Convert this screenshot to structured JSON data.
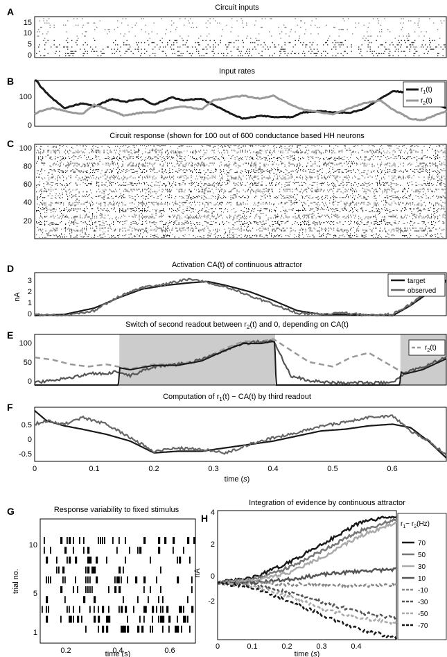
{
  "panels": {
    "A": {
      "letter": "A",
      "title": "Circuit inputs",
      "yticks": [
        "0",
        "5",
        "10",
        "15"
      ]
    },
    "B": {
      "letter": "B",
      "title": "Input rates",
      "yticks": [
        "0",
        "100"
      ],
      "legend": [
        "r",
        "1",
        "(t)",
        "r",
        "2",
        "(t)"
      ]
    },
    "C": {
      "letter": "C",
      "title": "Circuit response (shown for 100 out of 600 conductance based HH neurons",
      "yticks": [
        "20",
        "40",
        "60",
        "80",
        "100"
      ]
    },
    "D": {
      "letter": "D",
      "title": "Activation CA(t) of continuous attractor",
      "ylabel": "nA",
      "yticks": [
        "0",
        "1",
        "2",
        "3"
      ],
      "legend": [
        "target",
        "observed"
      ]
    },
    "E": {
      "letter": "E",
      "title_parts": [
        "Switch of second readout between r",
        "2",
        "(t) and 0, depending on CA(t)"
      ],
      "yticks": [
        "0",
        "50",
        "100"
      ],
      "legend": [
        "r",
        "2",
        "(t)"
      ]
    },
    "F": {
      "letter": "F",
      "title_parts": [
        "Computation of r",
        "1",
        "(t) − CA(t) by third readout"
      ],
      "yticks": [
        "-0.5",
        "0",
        "0.5"
      ],
      "xticks": [
        "0",
        "0.1",
        "0.2",
        "0.3",
        "0.4",
        "0.5",
        "0.6"
      ],
      "xlabel": "time (",
      "xlabel_unit": "s",
      "xlabel_end": ")"
    },
    "G": {
      "letter": "G",
      "title": "Response variability to fixed stimulus",
      "ylabel": "trial no.",
      "yticks": [
        "1",
        "5",
        "10"
      ],
      "xticks": [
        "0.2",
        "0.4",
        "0.6"
      ],
      "xlabel": "time (s)"
    },
    "H": {
      "letter": "H",
      "title": "Integration of evidence by continuous attractor",
      "ylabel": "nA",
      "yticks": [
        "-2",
        "0",
        "2",
        "4"
      ],
      "xticks": [
        "0",
        "0.1",
        "0.2",
        "0.3",
        "0.4"
      ],
      "xlabel": "time (",
      "xlabel_unit": "s",
      "xlabel_end": ")",
      "legend_title_parts": [
        "r",
        "1",
        "− r",
        "2",
        "(Hz)"
      ],
      "legend": [
        "70",
        "50",
        "30",
        "10",
        "−10",
        "−30",
        "−50",
        "−70"
      ]
    }
  },
  "colors": {
    "dark": "#1a1a1a",
    "mid": "#666666",
    "light": "#999999",
    "shade": "#cccccc"
  },
  "chart_data": [
    {
      "id": "A",
      "type": "scatter",
      "title": "Circuit inputs",
      "xlim": [
        0,
        0.69
      ],
      "ylim": [
        0,
        18
      ],
      "note": "spike raster of 16+ input channels"
    },
    {
      "id": "B",
      "type": "line",
      "title": "Input rates",
      "xlim": [
        0,
        0.69
      ],
      "ylim": [
        0,
        150
      ],
      "x": [
        0,
        0.01,
        0.03,
        0.05,
        0.08,
        0.1,
        0.13,
        0.15,
        0.18,
        0.2,
        0.23,
        0.25,
        0.28,
        0.3,
        0.33,
        0.35,
        0.38,
        0.4,
        0.43,
        0.45,
        0.48,
        0.5,
        0.53,
        0.55,
        0.58,
        0.6,
        0.63,
        0.65,
        0.67,
        0.69
      ],
      "series": [
        {
          "name": "r1(t)",
          "values": [
            160,
            130,
            90,
            60,
            75,
            65,
            90,
            80,
            90,
            70,
            95,
            85,
            90,
            70,
            40,
            25,
            35,
            30,
            30,
            45,
            50,
            45,
            45,
            55,
            90,
            115,
            110,
            90,
            70,
            60
          ]
        },
        {
          "name": "r2(t)",
          "values": [
            40,
            50,
            60,
            50,
            40,
            70,
            50,
            35,
            45,
            45,
            60,
            65,
            55,
            85,
            95,
            100,
            90,
            100,
            70,
            55,
            45,
            40,
            60,
            75,
            85,
            55,
            25,
            20,
            35,
            50
          ]
        }
      ]
    },
    {
      "id": "C",
      "type": "scatter",
      "title": "Circuit response (shown for 100 out of 600 conductance based HH neurons",
      "xlim": [
        0,
        0.69
      ],
      "ylim": [
        0,
        100
      ],
      "note": "spike raster"
    },
    {
      "id": "D",
      "type": "line",
      "title": "Activation CA(t) of continuous attractor",
      "ylabel": "nA",
      "xlim": [
        0,
        0.69
      ],
      "ylim": [
        0,
        3.4
      ],
      "x": [
        0,
        0.05,
        0.1,
        0.14,
        0.18,
        0.22,
        0.26,
        0.29,
        0.32,
        0.36,
        0.4,
        0.44,
        0.48,
        0.52,
        0.56,
        0.6,
        0.63,
        0.66,
        0.69
      ],
      "series": [
        {
          "name": "target",
          "values": [
            0,
            0.1,
            0.6,
            1.4,
            2.1,
            2.4,
            2.6,
            2.7,
            2.4,
            1.9,
            1.2,
            0.4,
            0.1,
            0.1,
            0.05,
            0,
            0.8,
            1.8,
            2.8
          ]
        },
        {
          "name": "observed",
          "values": [
            0.1,
            0,
            0.4,
            1.5,
            2.2,
            2.5,
            2.9,
            2.6,
            2.3,
            1.6,
            0.9,
            0.2,
            0.1,
            0.2,
            0,
            0.1,
            0.9,
            1.9,
            2.7
          ]
        }
      ]
    },
    {
      "id": "E",
      "type": "line",
      "title": "Switch of second readout between r2(t) and 0, depending on CA(t)",
      "xlim": [
        0,
        0.69
      ],
      "ylim": [
        0,
        110
      ],
      "shaded_regions": [
        [
          0.142,
          0.403
        ],
        [
          0.613,
          0.69
        ]
      ],
      "x": [
        0,
        0.03,
        0.06,
        0.09,
        0.12,
        0.14,
        0.16,
        0.2,
        0.24,
        0.28,
        0.32,
        0.35,
        0.38,
        0.4,
        0.43,
        0.46,
        0.5,
        0.53,
        0.56,
        0.6,
        0.62,
        0.65,
        0.69
      ],
      "series": [
        {
          "name": "r2(t)",
          "values": [
            60,
            55,
            45,
            40,
            45,
            40,
            35,
            45,
            45,
            55,
            80,
            95,
            95,
            100,
            75,
            50,
            40,
            60,
            70,
            40,
            25,
            35,
            60
          ]
        },
        {
          "name": "output",
          "values": [
            5,
            10,
            15,
            25,
            25,
            30,
            20,
            40,
            45,
            55,
            75,
            90,
            95,
            95,
            20,
            10,
            5,
            5,
            5,
            5,
            25,
            40,
            60
          ]
        }
      ]
    },
    {
      "id": "F",
      "type": "line",
      "title": "Computation of r1(t) − CA(t) by third readout",
      "xlabel": "time (s)",
      "xlim": [
        0,
        0.69
      ],
      "ylim": [
        -0.6,
        1.0
      ],
      "x": [
        0,
        0.02,
        0.05,
        0.08,
        0.12,
        0.16,
        0.2,
        0.24,
        0.28,
        0.32,
        0.36,
        0.4,
        0.44,
        0.48,
        0.52,
        0.56,
        0.6,
        0.63,
        0.66,
        0.69
      ],
      "series": [
        {
          "name": "target",
          "values": [
            0.9,
            0.6,
            0.45,
            0.35,
            0.2,
            0.0,
            -0.35,
            -0.3,
            -0.3,
            -0.2,
            -0.1,
            0.0,
            0.15,
            0.3,
            0.35,
            0.45,
            0.5,
            0.4,
            0.0,
            -0.5
          ]
        },
        {
          "name": "observed",
          "values": [
            0.5,
            0.6,
            0.5,
            0.7,
            0.5,
            0.1,
            -0.3,
            -0.2,
            -0.25,
            -0.35,
            -0.1,
            0.1,
            0.25,
            0.45,
            0.55,
            0.7,
            0.75,
            0.3,
            0.0,
            -0.4
          ]
        }
      ]
    },
    {
      "id": "G",
      "type": "scatter",
      "title": "Response variability to fixed stimulus",
      "xlabel": "time (s)",
      "ylabel": "trial no.",
      "xlim": [
        0.1,
        0.7
      ],
      "ylim": [
        0,
        11
      ],
      "note": "spike raster of 10 trials"
    },
    {
      "id": "H",
      "type": "line",
      "title": "Integration of evidence by continuous attractor",
      "xlabel": "time (s)",
      "ylabel": "nA",
      "xlim": [
        0,
        0.5
      ],
      "ylim": [
        -3.4,
        4.3
      ],
      "x": [
        0,
        0.1,
        0.2,
        0.3,
        0.4,
        0.5
      ],
      "series": [
        {
          "name": "70",
          "values": [
            0,
            0.3,
            1.2,
            2.4,
            3.6,
            4.0
          ]
        },
        {
          "name": "50",
          "values": [
            0,
            0.2,
            0.9,
            2.0,
            3.1,
            3.8
          ]
        },
        {
          "name": "30",
          "values": [
            0,
            0.1,
            0.6,
            1.6,
            2.8,
            3.6
          ]
        },
        {
          "name": "10",
          "values": [
            0,
            0,
            0.2,
            0.5,
            0.7,
            0.8
          ]
        },
        {
          "name": "-10",
          "values": [
            0,
            0,
            -0.1,
            -0.1,
            -0.2,
            -0.1
          ]
        },
        {
          "name": "-30",
          "values": [
            0,
            -0.1,
            -0.6,
            -1.2,
            -1.8,
            -2.1
          ]
        },
        {
          "name": "-50",
          "values": [
            0,
            -0.2,
            -0.8,
            -1.6,
            -2.1,
            -2.4
          ]
        },
        {
          "name": "-70",
          "values": [
            0,
            -0.3,
            -1.1,
            -2.0,
            -2.8,
            -3.3
          ]
        }
      ]
    }
  ]
}
